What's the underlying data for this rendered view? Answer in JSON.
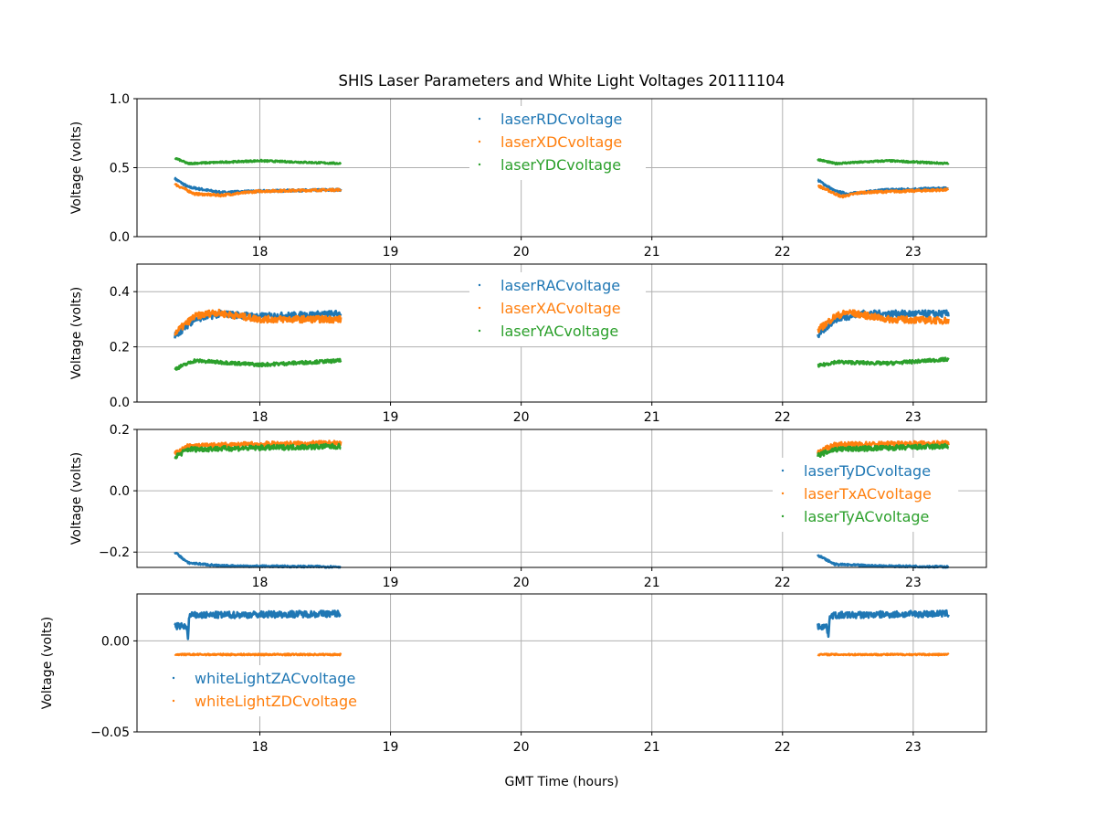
{
  "chart_data": {
    "type": "scatter",
    "title": "SHIS Laser Parameters and White Light Voltages 20111104",
    "xlabel": "GMT Time (hours)",
    "xlim": [
      17.06,
      23.56
    ],
    "xticks": [
      18,
      19,
      20,
      21,
      22,
      23
    ],
    "grid": true,
    "colors": {
      "C0": "#1f77b4",
      "C1": "#ff7f0e",
      "C2": "#2ca02c"
    },
    "subplots": [
      {
        "ylabel": "Voltage (volts)",
        "ylim": [
          0,
          1.0
        ],
        "yticks": [
          0,
          0.5,
          1.0
        ],
        "yticklabels": [
          "0.0",
          "0.5",
          "1.0"
        ],
        "legend": "upper-center",
        "series": [
          {
            "name": "laserRDCvoltage",
            "color": "#1f77b4",
            "noise": 0.008,
            "segments": [
              [
                [
                  17.35,
                  0.42
                ],
                [
                  17.45,
                  0.36
                ],
                [
                  17.7,
                  0.32
                ],
                [
                  18.0,
                  0.33
                ],
                [
                  18.62,
                  0.34
                ]
              ],
              [
                [
                  22.27,
                  0.41
                ],
                [
                  22.4,
                  0.33
                ],
                [
                  22.5,
                  0.31
                ],
                [
                  22.8,
                  0.34
                ],
                [
                  23.27,
                  0.35
                ]
              ]
            ]
          },
          {
            "name": "laserXDCvoltage",
            "color": "#ff7f0e",
            "noise": 0.008,
            "segments": [
              [
                [
                  17.35,
                  0.38
                ],
                [
                  17.5,
                  0.31
                ],
                [
                  17.7,
                  0.3
                ],
                [
                  18.0,
                  0.33
                ],
                [
                  18.62,
                  0.34
                ]
              ],
              [
                [
                  22.27,
                  0.37
                ],
                [
                  22.45,
                  0.29
                ],
                [
                  22.6,
                  0.32
                ],
                [
                  23.27,
                  0.34
                ]
              ]
            ]
          },
          {
            "name": "laserYDCvoltage",
            "color": "#2ca02c",
            "noise": 0.006,
            "segments": [
              [
                [
                  17.35,
                  0.57
                ],
                [
                  17.45,
                  0.53
                ],
                [
                  18.0,
                  0.55
                ],
                [
                  18.62,
                  0.53
                ]
              ],
              [
                [
                  22.27,
                  0.56
                ],
                [
                  22.4,
                  0.53
                ],
                [
                  22.8,
                  0.55
                ],
                [
                  23.27,
                  0.53
                ]
              ]
            ]
          }
        ]
      },
      {
        "ylabel": "Voltage (volts)",
        "ylim": [
          0,
          0.5
        ],
        "yticks": [
          0,
          0.2,
          0.4
        ],
        "yticklabels": [
          "0.0",
          "0.2",
          "0.4"
        ],
        "legend": "upper-center",
        "series": [
          {
            "name": "laserRACvoltage",
            "color": "#1f77b4",
            "noise": 0.012,
            "segments": [
              [
                [
                  17.35,
                  0.24
                ],
                [
                  17.5,
                  0.3
                ],
                [
                  17.7,
                  0.32
                ],
                [
                  18.0,
                  0.31
                ],
                [
                  18.62,
                  0.32
                ]
              ],
              [
                [
                  22.27,
                  0.24
                ],
                [
                  22.4,
                  0.3
                ],
                [
                  22.6,
                  0.32
                ],
                [
                  23.27,
                  0.32
                ]
              ]
            ]
          },
          {
            "name": "laserXACvoltage",
            "color": "#ff7f0e",
            "noise": 0.012,
            "segments": [
              [
                [
                  17.35,
                  0.25
                ],
                [
                  17.5,
                  0.31
                ],
                [
                  17.65,
                  0.325
                ],
                [
                  18.0,
                  0.3
                ],
                [
                  18.62,
                  0.3
                ]
              ],
              [
                [
                  22.27,
                  0.26
                ],
                [
                  22.4,
                  0.31
                ],
                [
                  22.5,
                  0.325
                ],
                [
                  22.8,
                  0.3
                ],
                [
                  23.27,
                  0.295
                ]
              ]
            ]
          },
          {
            "name": "laserYACvoltage",
            "color": "#2ca02c",
            "noise": 0.006,
            "segments": [
              [
                [
                  17.35,
                  0.12
                ],
                [
                  17.5,
                  0.15
                ],
                [
                  18.0,
                  0.135
                ],
                [
                  18.62,
                  0.15
                ]
              ],
              [
                [
                  22.27,
                  0.13
                ],
                [
                  22.4,
                  0.145
                ],
                [
                  22.8,
                  0.14
                ],
                [
                  23.27,
                  0.155
                ]
              ]
            ]
          }
        ]
      },
      {
        "ylabel": "Voltage (volts)",
        "ylim": [
          -0.25,
          0.2
        ],
        "yticks": [
          -0.2,
          0.0,
          0.2
        ],
        "yticklabels": [
          "−0.2",
          "0.0",
          "0.2"
        ],
        "legend": "center-right",
        "series": [
          {
            "name": "laserTyDCvoltage",
            "color": "#1f77b4",
            "noise": 0.003,
            "segments": [
              [
                [
                  17.35,
                  -0.2
                ],
                [
                  17.45,
                  -0.235
                ],
                [
                  17.7,
                  -0.245
                ],
                [
                  18.62,
                  -0.248
                ]
              ],
              [
                [
                  22.27,
                  -0.21
                ],
                [
                  22.4,
                  -0.24
                ],
                [
                  22.7,
                  -0.245
                ],
                [
                  23.27,
                  -0.248
                ]
              ]
            ]
          },
          {
            "name": "laserTxACvoltage",
            "color": "#ff7f0e",
            "noise": 0.008,
            "segments": [
              [
                [
                  17.35,
                  0.12
                ],
                [
                  17.45,
                  0.145
                ],
                [
                  18.0,
                  0.152
                ],
                [
                  18.62,
                  0.155
                ]
              ],
              [
                [
                  22.27,
                  0.125
                ],
                [
                  22.4,
                  0.15
                ],
                [
                  23.27,
                  0.155
                ]
              ]
            ]
          },
          {
            "name": "laserTyACvoltage",
            "color": "#2ca02c",
            "noise": 0.008,
            "segments": [
              [
                [
                  17.35,
                  0.11
                ],
                [
                  17.45,
                  0.135
                ],
                [
                  18.0,
                  0.14
                ],
                [
                  18.62,
                  0.145
                ]
              ],
              [
                [
                  22.27,
                  0.115
                ],
                [
                  22.4,
                  0.135
                ],
                [
                  23.27,
                  0.145
                ]
              ]
            ]
          }
        ]
      },
      {
        "ylabel": "Voltage (volts)",
        "ylim": [
          -0.05,
          0.0258
        ],
        "yticks": [
          -0.05,
          0.0
        ],
        "yticklabels": [
          "−0.05",
          "0.00"
        ],
        "legend": "center-left",
        "series": [
          {
            "name": "whiteLightZACvoltage",
            "color": "#1f77b4",
            "noise": 0.0018,
            "segments": [
              [
                [
                  17.35,
                  0.008
                ],
                [
                  17.44,
                  0.008
                ],
                [
                  17.45,
                  0.001
                ],
                [
                  17.46,
                  0.014
                ],
                [
                  18.62,
                  0.015
                ]
              ],
              [
                [
                  22.27,
                  0.008
                ],
                [
                  22.34,
                  0.008
                ],
                [
                  22.35,
                  0.001
                ],
                [
                  22.36,
                  0.014
                ],
                [
                  23.27,
                  0.015
                ]
              ]
            ]
          },
          {
            "name": "whiteLightZDCvoltage",
            "color": "#ff7f0e",
            "noise": 0.0004,
            "segments": [
              [
                [
                  17.35,
                  -0.0075
                ],
                [
                  18.62,
                  -0.0075
                ]
              ],
              [
                [
                  22.27,
                  -0.0075
                ],
                [
                  23.27,
                  -0.0075
                ]
              ]
            ]
          }
        ]
      }
    ]
  }
}
